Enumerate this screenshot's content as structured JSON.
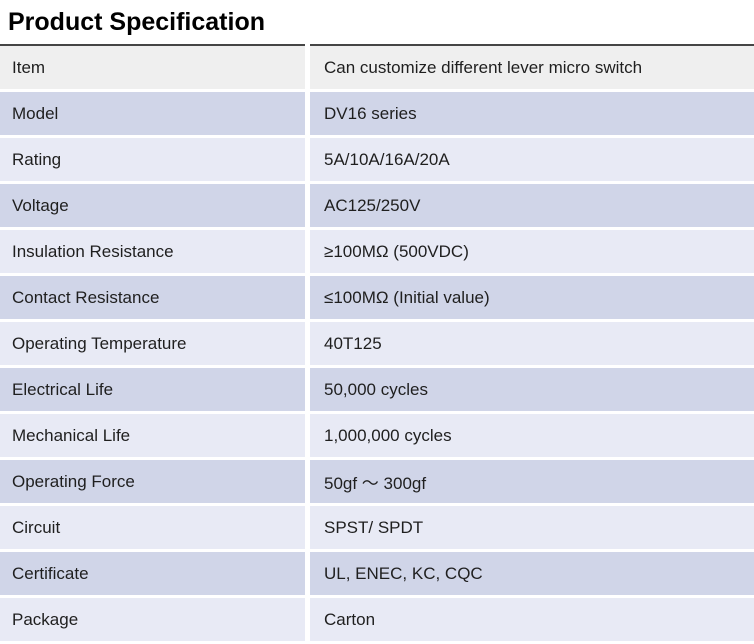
{
  "title": "Product Specification",
  "colors": {
    "top_rule": "#454545",
    "row_gap": "#ffffff",
    "text": "#1f1f1f",
    "row_tones": {
      "gray": "#efefef",
      "dark": "#d0d5e8",
      "light": "#e8eaf5"
    }
  },
  "table": {
    "rows": [
      {
        "label": "Item",
        "value": "Can customize different lever micro switch",
        "tone": "gray"
      },
      {
        "label": "Model",
        "value": "DV16 series",
        "tone": "dark"
      },
      {
        "label": "Rating",
        "value": "5A/10A/16A/20A",
        "tone": "light"
      },
      {
        "label": "Voltage",
        "value": "AC125/250V",
        "tone": "dark"
      },
      {
        "label": "Insulation Resistance",
        "value": "≥100MΩ (500VDC)",
        "tone": "light"
      },
      {
        "label": "Contact Resistance",
        "value": "≤100MΩ (Initial value)",
        "tone": "dark"
      },
      {
        "label": "Operating Temperature",
        "value": "40T125",
        "tone": "light"
      },
      {
        "label": "Electrical Life",
        "value": "50,000 cycles",
        "tone": "dark"
      },
      {
        "label": "Mechanical Life",
        "value": "1,000,000 cycles",
        "tone": "light"
      },
      {
        "label": "Operating Force",
        "value": "50gf ～ 300gf",
        "tone": "dark"
      },
      {
        "label": "Circuit",
        "value": "SPST/ SPDT",
        "tone": "light"
      },
      {
        "label": "Certificate",
        "value": "UL, ENEC, KC, CQC",
        "tone": "dark"
      },
      {
        "label": "Package",
        "value": "Carton",
        "tone": "light"
      }
    ]
  }
}
